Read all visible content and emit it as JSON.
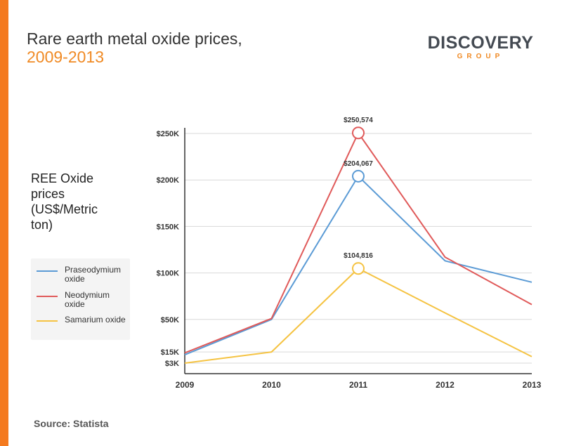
{
  "title_line1": "Rare earth metal oxide prices,",
  "title_line2": "2009-2013",
  "logo": {
    "main": "DISCOVERY",
    "sub": "GROUP"
  },
  "y_axis_label": "REE Oxide prices (US$/Metric ton)",
  "source": "Source: Statista",
  "colors": {
    "accent": "#f47a1f",
    "praseodymium": "#5b9bd5",
    "neodymium": "#e05a5a",
    "samarium": "#f5c342"
  },
  "legend": [
    {
      "label": "Praseodymium oxide",
      "color": "#5b9bd5"
    },
    {
      "label": "Neodymium oxide",
      "color": "#e05a5a"
    },
    {
      "label": "Samarium oxide",
      "color": "#f5c342"
    }
  ],
  "chart_data": {
    "type": "line",
    "title": "Rare earth metal oxide prices, 2009-2013",
    "ylabel": "REE Oxide prices (US$/Metric ton)",
    "x": [
      "2009",
      "2010",
      "2011",
      "2012",
      "2013"
    ],
    "ylim": [
      0,
      250000
    ],
    "y_ticks": [
      {
        "value": 3000,
        "label": "$3K"
      },
      {
        "value": 15000,
        "label": "$15K"
      },
      {
        "value": 50000,
        "label": "$50K"
      },
      {
        "value": 100000,
        "label": "$100K"
      },
      {
        "value": 150000,
        "label": "$150K"
      },
      {
        "value": 200000,
        "label": "$200K"
      },
      {
        "value": 250000,
        "label": "$250K"
      }
    ],
    "series": [
      {
        "name": "Praseodymium oxide",
        "color": "#5b9bd5",
        "values": [
          12000,
          50000,
          204067,
          113000,
          90000
        ]
      },
      {
        "name": "Neodymium oxide",
        "color": "#e05a5a",
        "values": [
          14000,
          51000,
          250574,
          117000,
          66000
        ]
      },
      {
        "name": "Samarium oxide",
        "color": "#f5c342",
        "values": [
          3000,
          15000,
          104816,
          57000,
          10000
        ]
      }
    ],
    "annotations": [
      {
        "series": 1,
        "index": 2,
        "label": "$250,574"
      },
      {
        "series": 0,
        "index": 2,
        "label": "$204,067"
      },
      {
        "series": 2,
        "index": 2,
        "label": "$104,816"
      }
    ],
    "grid": true
  }
}
